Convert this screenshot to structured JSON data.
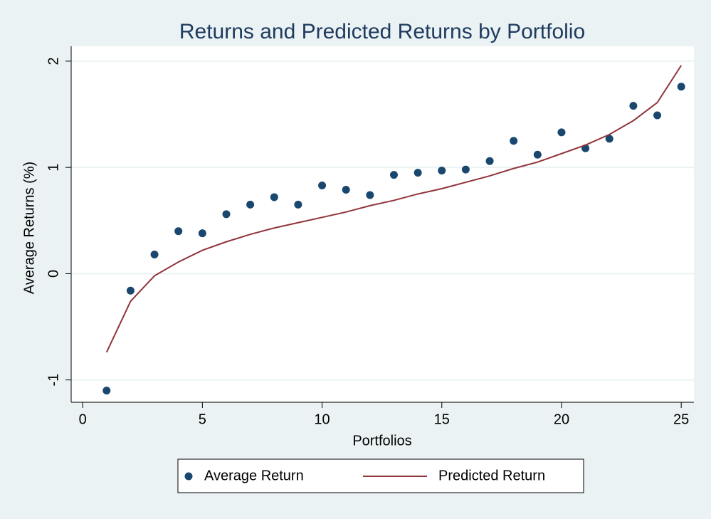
{
  "chart_data": {
    "type": "line_scatter",
    "title": "Returns and Predicted Returns by Portfolio",
    "x_label": "Portfolios",
    "y_label": "Average Returns (%)",
    "x": [
      1,
      2,
      3,
      4,
      5,
      6,
      7,
      8,
      9,
      10,
      11,
      12,
      13,
      14,
      15,
      16,
      17,
      18,
      19,
      20,
      21,
      22,
      23,
      24,
      25
    ],
    "series": [
      {
        "name": "Average Return",
        "color": "#1a476f",
        "kind": "scatter",
        "values": [
          -1.1,
          -0.16,
          0.18,
          0.4,
          0.38,
          0.56,
          0.65,
          0.72,
          0.65,
          0.83,
          0.79,
          0.74,
          0.93,
          0.95,
          0.97,
          0.98,
          1.06,
          1.25,
          1.12,
          1.33,
          1.18,
          1.27,
          1.58,
          1.49,
          1.76
        ]
      },
      {
        "name": "Predicted Return",
        "color": "#90353b",
        "kind": "line",
        "values": [
          -0.74,
          -0.26,
          -0.02,
          0.11,
          0.22,
          0.3,
          0.37,
          0.43,
          0.48,
          0.53,
          0.58,
          0.64,
          0.69,
          0.75,
          0.8,
          0.86,
          0.92,
          0.99,
          1.05,
          1.13,
          1.21,
          1.31,
          1.44,
          1.61,
          1.96
        ]
      }
    ],
    "xlim": [
      -0.48,
      25.53
    ],
    "xticks": [
      0,
      5,
      10,
      15,
      20,
      25
    ],
    "ylim": [
      -1.21,
      2.14
    ],
    "yticks": [
      -1,
      0,
      1,
      2
    ],
    "grid": true,
    "legend": "bottom"
  }
}
